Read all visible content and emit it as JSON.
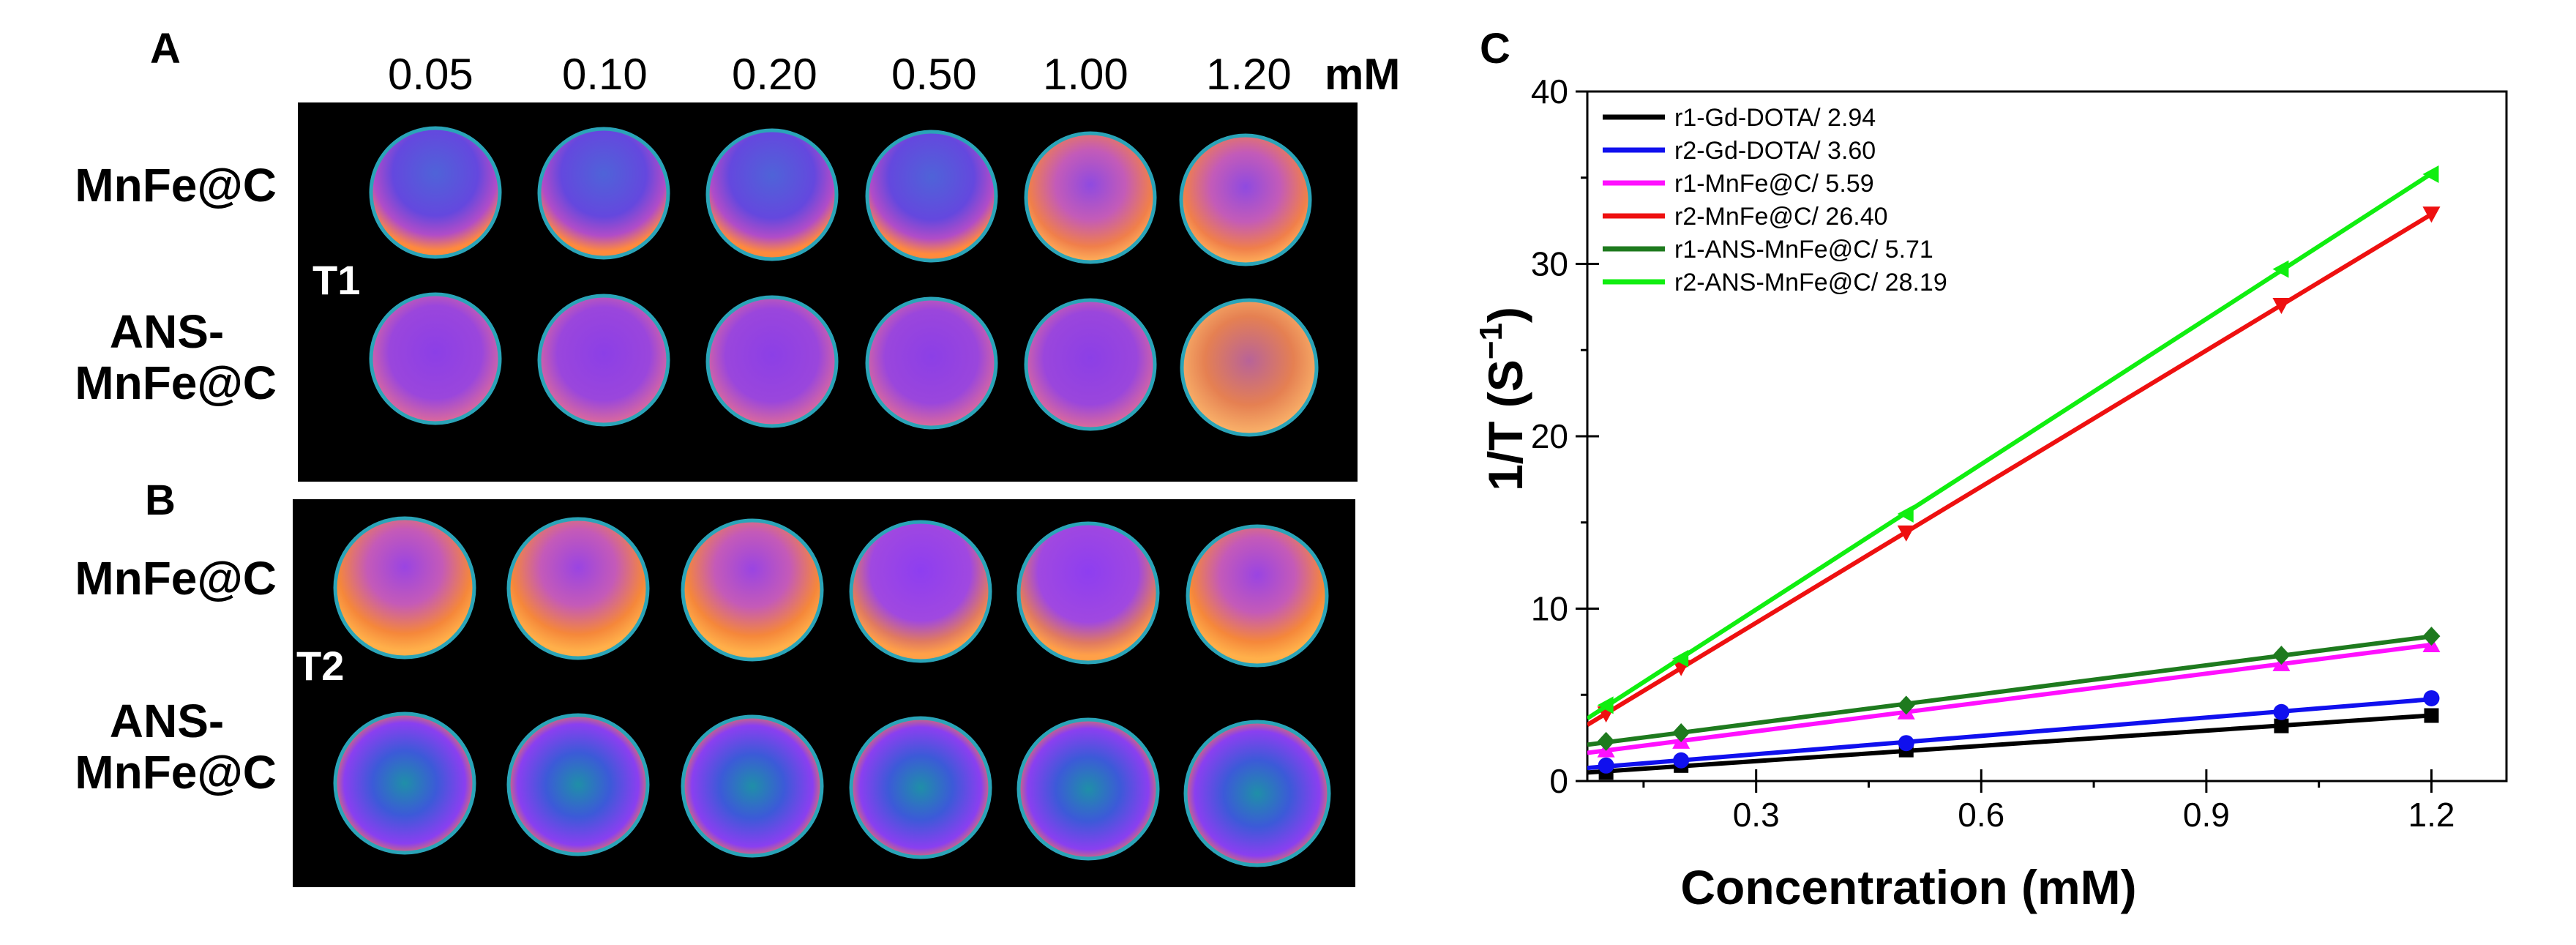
{
  "panels": {
    "a": "A",
    "b": "B",
    "c": "C"
  },
  "concentrations": [
    "0.05",
    "0.10",
    "0.20",
    "0.50",
    "1.00",
    "1.20"
  ],
  "unit": "mM",
  "row_labels": {
    "t1_row1": "MnFe@C",
    "t1_row2_line1": "ANS-",
    "t1_row2_line2": "MnFe@C",
    "t2_row1": "MnFe@C",
    "t2_row2_line1": "ANS-",
    "t2_row2_line2": "MnFe@C"
  },
  "sequence_labels": {
    "t1": "T1",
    "t2": "T2"
  },
  "colors": {
    "black": "#000000",
    "blue": "#1010ee",
    "magenta": "#ff10ff",
    "red": "#ee1010",
    "olive": "#1e7a1e",
    "green": "#10ee10"
  },
  "chart_data": {
    "type": "line",
    "title": "",
    "xlabel": "Concentration (mM)",
    "ylabel": "1/T (S",
    "ylabel_sup": "−1",
    "ylabel_close": ")",
    "xlim": [
      0.075,
      1.3
    ],
    "ylim": [
      0,
      40
    ],
    "xticks": [
      "0.3",
      "0.6",
      "0.9",
      "1.2"
    ],
    "yticks": [
      "0",
      "10",
      "20",
      "30",
      "40"
    ],
    "legend_position": "top-left",
    "x": [
      0.1,
      0.2,
      0.5,
      1.0,
      1.2
    ],
    "series": [
      {
        "name": "r1-Gd-DOTA/ 2.94",
        "color": "#000000",
        "marker": "square",
        "values": [
          0.5,
          0.9,
          1.8,
          3.2,
          3.8
        ]
      },
      {
        "name": "r2-Gd-DOTA/ 3.60",
        "color": "#1010ee",
        "marker": "circle",
        "values": [
          0.9,
          1.2,
          2.2,
          4.0,
          4.8
        ]
      },
      {
        "name": "r1-MnFe@C/ 5.59",
        "color": "#ff10ff",
        "marker": "triangle-up",
        "values": [
          1.8,
          2.3,
          4.0,
          6.8,
          7.9
        ]
      },
      {
        "name": "r2-MnFe@C/ 26.40",
        "color": "#ee1010",
        "marker": "triangle-down",
        "values": [
          3.9,
          6.6,
          14.4,
          27.6,
          32.9
        ]
      },
      {
        "name": "r1-ANS-MnFe@C/ 5.71",
        "color": "#1e7a1e",
        "marker": "diamond",
        "values": [
          2.3,
          2.8,
          4.4,
          7.3,
          8.4
        ]
      },
      {
        "name": "r2-ANS-MnFe@C/ 28.19",
        "color": "#10ee10",
        "marker": "triangle-left",
        "values": [
          4.4,
          7.1,
          15.5,
          29.7,
          35.2
        ]
      }
    ]
  }
}
